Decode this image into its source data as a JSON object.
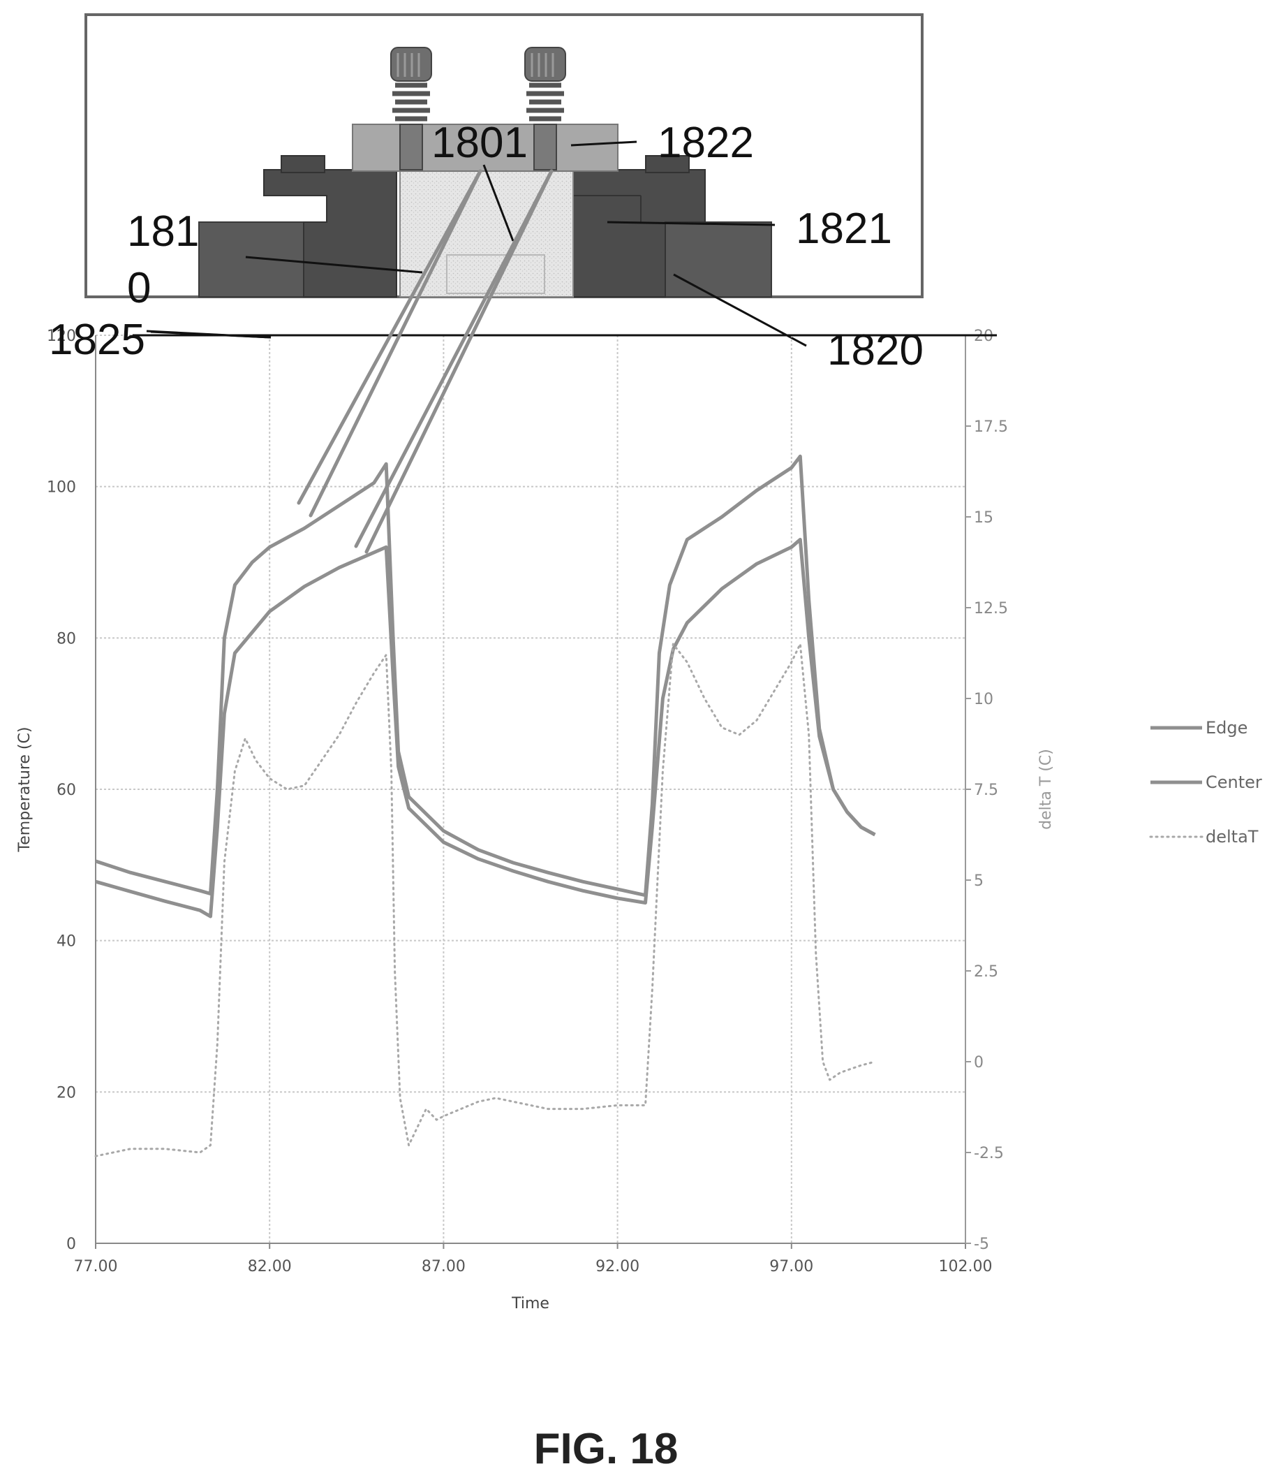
{
  "figure": {
    "caption": "FIG. 18",
    "callouts": {
      "c1801": "1801",
      "c1822": "1822",
      "c1821": "1821",
      "c1810_line1": "181",
      "c1810_line2": "0",
      "c1825": "1825",
      "c1820": "1820"
    }
  },
  "chart_data": {
    "type": "line",
    "title": "",
    "xlabel": "Time",
    "ylabel": "Temperature (C)",
    "y2label": "delta T (C)",
    "xlim": [
      77,
      102
    ],
    "ylim": [
      0,
      120
    ],
    "y2lim": [
      -5,
      20
    ],
    "x_ticks": [
      "77.00",
      "82.00",
      "87.00",
      "92.00",
      "97.00",
      "102.00"
    ],
    "y_ticks": [
      "0",
      "20",
      "40",
      "60",
      "80",
      "100",
      "120"
    ],
    "y2_ticks": [
      "-5",
      "-2.5",
      "0",
      "2.5",
      "5",
      "7.5",
      "10",
      "12.5",
      "15",
      "17.5",
      "20"
    ],
    "grid": true,
    "legend_position": "right",
    "colors": {
      "edge": "#8f8f8f",
      "center": "#8f8f8f",
      "deltaT": "#a8a8a8",
      "grid": "#c8c8c8"
    },
    "series": [
      {
        "name": "Edge",
        "axis": "left",
        "style": "solid",
        "points": [
          [
            77.0,
            50.5
          ],
          [
            78.0,
            49.0
          ],
          [
            79.0,
            47.8
          ],
          [
            80.0,
            46.6
          ],
          [
            80.3,
            46.2
          ],
          [
            80.5,
            60.0
          ],
          [
            80.7,
            80.0
          ],
          [
            81.0,
            87.0
          ],
          [
            81.5,
            90.0
          ],
          [
            82.0,
            92.0
          ],
          [
            83.0,
            94.5
          ],
          [
            84.0,
            97.5
          ],
          [
            85.0,
            100.5
          ],
          [
            85.35,
            103.0
          ],
          [
            85.55,
            80.0
          ],
          [
            85.7,
            65.0
          ],
          [
            86.0,
            59.0
          ],
          [
            87.0,
            54.5
          ],
          [
            88.0,
            52.0
          ],
          [
            89.0,
            50.3
          ],
          [
            90.0,
            49.0
          ],
          [
            91.0,
            47.8
          ],
          [
            92.0,
            46.8
          ],
          [
            92.8,
            46.0
          ],
          [
            93.0,
            58.0
          ],
          [
            93.2,
            78.0
          ],
          [
            93.5,
            87.0
          ],
          [
            94.0,
            93.0
          ],
          [
            95.0,
            96.0
          ],
          [
            96.0,
            99.5
          ],
          [
            97.0,
            102.5
          ],
          [
            97.25,
            104.0
          ],
          [
            97.5,
            85.0
          ],
          [
            97.8,
            68.0
          ],
          [
            98.2,
            60.0
          ],
          [
            98.6,
            57.0
          ],
          [
            99.0,
            55.0
          ],
          [
            99.4,
            54.0
          ]
        ]
      },
      {
        "name": "Center",
        "axis": "left",
        "style": "solid",
        "points": [
          [
            77.0,
            47.8
          ],
          [
            78.0,
            46.5
          ],
          [
            79.0,
            45.2
          ],
          [
            80.0,
            44.0
          ],
          [
            80.3,
            43.2
          ],
          [
            80.5,
            55.0
          ],
          [
            80.7,
            70.0
          ],
          [
            81.0,
            78.0
          ],
          [
            82.0,
            83.5
          ],
          [
            83.0,
            86.8
          ],
          [
            84.0,
            89.3
          ],
          [
            85.0,
            91.3
          ],
          [
            85.35,
            92.0
          ],
          [
            85.55,
            75.0
          ],
          [
            85.7,
            63.0
          ],
          [
            86.0,
            57.5
          ],
          [
            87.0,
            53.0
          ],
          [
            88.0,
            50.8
          ],
          [
            89.0,
            49.2
          ],
          [
            90.0,
            47.8
          ],
          [
            91.0,
            46.6
          ],
          [
            92.0,
            45.6
          ],
          [
            92.8,
            45.0
          ],
          [
            93.0,
            55.0
          ],
          [
            93.3,
            72.0
          ],
          [
            93.6,
            78.5
          ],
          [
            94.0,
            82.0
          ],
          [
            95.0,
            86.5
          ],
          [
            96.0,
            89.8
          ],
          [
            97.0,
            92.0
          ],
          [
            97.25,
            93.0
          ],
          [
            97.5,
            80.0
          ],
          [
            97.8,
            67.0
          ],
          [
            98.2,
            60.0
          ],
          [
            98.6,
            57.0
          ],
          [
            99.0,
            55.0
          ],
          [
            99.4,
            54.0
          ]
        ]
      },
      {
        "name": "deltaT",
        "axis": "right",
        "style": "dotted",
        "points": [
          [
            77.0,
            -2.6
          ],
          [
            78.0,
            -2.4
          ],
          [
            79.0,
            -2.4
          ],
          [
            80.0,
            -2.5
          ],
          [
            80.3,
            -2.3
          ],
          [
            80.5,
            0.5
          ],
          [
            80.7,
            5.5
          ],
          [
            81.0,
            8.0
          ],
          [
            81.3,
            8.9
          ],
          [
            81.6,
            8.3
          ],
          [
            82.0,
            7.8
          ],
          [
            82.5,
            7.5
          ],
          [
            83.0,
            7.6
          ],
          [
            84.0,
            9.0
          ],
          [
            84.5,
            9.9
          ],
          [
            85.0,
            10.7
          ],
          [
            85.35,
            11.2
          ],
          [
            85.5,
            8.0
          ],
          [
            85.6,
            2.5
          ],
          [
            85.75,
            -1.0
          ],
          [
            86.0,
            -2.3
          ],
          [
            86.3,
            -1.7
          ],
          [
            86.5,
            -1.3
          ],
          [
            86.8,
            -1.6
          ],
          [
            87.0,
            -1.5
          ],
          [
            87.5,
            -1.3
          ],
          [
            88.0,
            -1.1
          ],
          [
            88.5,
            -1.0
          ],
          [
            89.0,
            -1.1
          ],
          [
            89.5,
            -1.2
          ],
          [
            90.0,
            -1.3
          ],
          [
            91.0,
            -1.3
          ],
          [
            92.0,
            -1.2
          ],
          [
            92.8,
            -1.2
          ],
          [
            93.0,
            2.0
          ],
          [
            93.3,
            8.0
          ],
          [
            93.6,
            11.5
          ],
          [
            94.0,
            11.0
          ],
          [
            94.5,
            10.0
          ],
          [
            95.0,
            9.2
          ],
          [
            95.5,
            9.0
          ],
          [
            96.0,
            9.4
          ],
          [
            96.5,
            10.2
          ],
          [
            97.0,
            11.0
          ],
          [
            97.25,
            11.5
          ],
          [
            97.5,
            9.0
          ],
          [
            97.7,
            3.0
          ],
          [
            97.9,
            0.0
          ],
          [
            98.1,
            -0.5
          ],
          [
            98.4,
            -0.3
          ],
          [
            98.7,
            -0.2
          ],
          [
            99.0,
            -0.1
          ],
          [
            99.4,
            0.0
          ]
        ]
      }
    ]
  }
}
